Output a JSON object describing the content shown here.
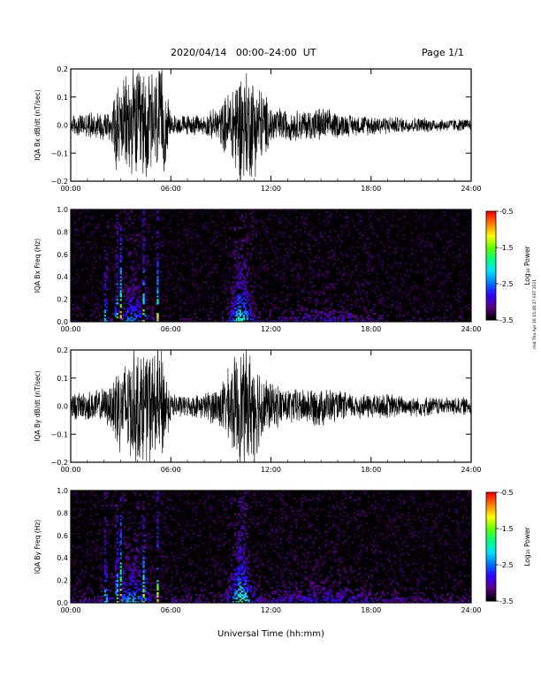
{
  "header": {
    "title": "2020/04/14   00:00–24:00  UT",
    "page": "Page 1/1",
    "timestamp": "mid Thu Apr 16 15:48:37 EST 2021"
  },
  "colors": {
    "spectral_scale": [
      "#000000",
      "#5a0085",
      "#3000ff",
      "#0070ff",
      "#00e0ff",
      "#00ff80",
      "#60ff00",
      "#ffff00",
      "#ff8000",
      "#ff0000"
    ]
  },
  "chart_data": [
    {
      "type": "line",
      "panel": "IQA Bx dB/dt",
      "ylabel": "IQA Bx dB/dt (nT/sec)",
      "xlabel": "",
      "xticks": [
        "00:00",
        "06:00",
        "12:00",
        "18:00",
        "24:00"
      ],
      "yticks": [
        "0.2",
        "0.1",
        "0.0",
        "−0.1",
        "−0.2"
      ],
      "xlim": [
        0,
        24
      ],
      "ylim": [
        -0.2,
        0.2
      ],
      "series": [
        {
          "envelope_hours": [
            0,
            1,
            2,
            2.5,
            2.7,
            3.0,
            3.5,
            4,
            4.5,
            5.0,
            5.5,
            6,
            7,
            8,
            9,
            9.5,
            10,
            10.5,
            11,
            11.5,
            12,
            13,
            14,
            15,
            16,
            17,
            18,
            19,
            20,
            21,
            22,
            23,
            24
          ],
          "envelope_amplitude": [
            0.04,
            0.05,
            0.06,
            0.07,
            0.22,
            0.14,
            0.22,
            0.22,
            0.22,
            0.22,
            0.22,
            0.04,
            0.04,
            0.04,
            0.08,
            0.14,
            0.22,
            0.22,
            0.2,
            0.14,
            0.08,
            0.06,
            0.06,
            0.07,
            0.05,
            0.04,
            0.04,
            0.035,
            0.03,
            0.03,
            0.025,
            0.025,
            0.025
          ]
        }
      ]
    },
    {
      "type": "heatmap",
      "panel": "IQA Bx Freq",
      "ylabel": "IQA Bx Freq (Hz)",
      "xticks": [
        "00:00",
        "06:00",
        "12:00",
        "18:00",
        "24:00"
      ],
      "yticks": [
        "1.0",
        "0.8",
        "0.6",
        "0.4",
        "0.2",
        "0.0"
      ],
      "xlim": [
        0,
        24
      ],
      "ylim": [
        0,
        1.0
      ],
      "colorbar": {
        "label": "Log₁₀ Power",
        "ticks": [
          "-0.5",
          "-1.5",
          "-2.5",
          "-3.5"
        ],
        "range": [
          -3.5,
          -0.5
        ]
      }
    },
    {
      "type": "line",
      "panel": "IQA By dB/dt",
      "ylabel": "IQA By dB/dt (nT/sec)",
      "xlabel": "",
      "xticks": [
        "00:00",
        "06:00",
        "12:00",
        "18:00",
        "24:00"
      ],
      "yticks": [
        "0.2",
        "0.1",
        "0.0",
        "−0.1",
        "−0.2"
      ],
      "xlim": [
        0,
        24
      ],
      "ylim": [
        -0.2,
        0.2
      ],
      "series": [
        {
          "envelope_hours": [
            0,
            1,
            2,
            2.5,
            2.7,
            3.0,
            3.5,
            4,
            4.5,
            5.0,
            5.5,
            6,
            7,
            8,
            9,
            9.5,
            10,
            10.5,
            11,
            11.5,
            12,
            13,
            14,
            15,
            16,
            17,
            18,
            19,
            20,
            21,
            22,
            23,
            24
          ],
          "envelope_amplitude": [
            0.05,
            0.06,
            0.07,
            0.09,
            0.22,
            0.16,
            0.22,
            0.22,
            0.22,
            0.22,
            0.22,
            0.05,
            0.04,
            0.05,
            0.09,
            0.15,
            0.22,
            0.22,
            0.22,
            0.14,
            0.09,
            0.07,
            0.07,
            0.08,
            0.06,
            0.05,
            0.05,
            0.05,
            0.04,
            0.04,
            0.035,
            0.035,
            0.035
          ]
        }
      ]
    },
    {
      "type": "heatmap",
      "panel": "IQA By Freq",
      "ylabel": "IQA By Freq (Hz)",
      "xlabel": "Universal Time (hh:mm)",
      "xticks": [
        "00:00",
        "06:00",
        "12:00",
        "18:00",
        "24:00"
      ],
      "yticks": [
        "1.0",
        "0.8",
        "0.6",
        "0.4",
        "0.2",
        "0.0"
      ],
      "xlim": [
        0,
        24
      ],
      "ylim": [
        0,
        1.0
      ],
      "colorbar": {
        "label": "Log₁₀ Power",
        "ticks": [
          "-0.5",
          "-1.5",
          "-2.5",
          "-3.5"
        ],
        "range": [
          -3.5,
          -0.5
        ]
      }
    }
  ]
}
